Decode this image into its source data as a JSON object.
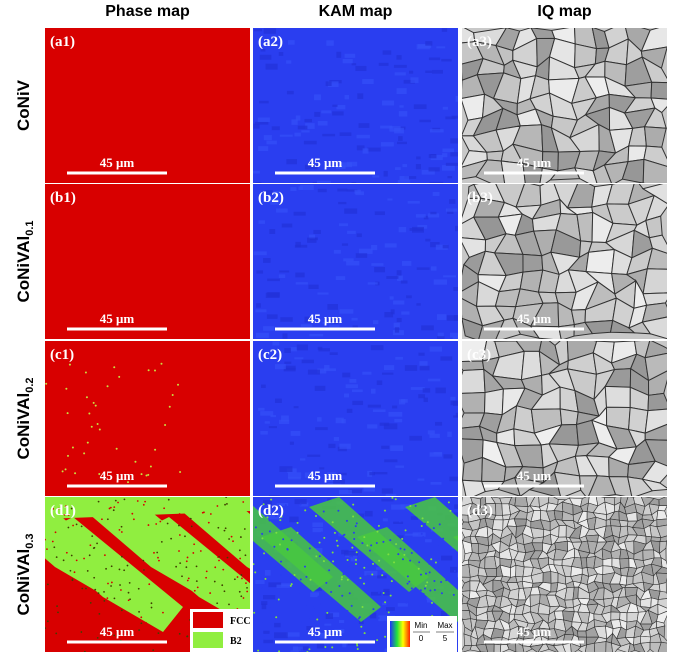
{
  "columns": [
    "Phase map",
    "KAM map",
    "IQ map"
  ],
  "rows": [
    {
      "label": "CoNiV",
      "panels": [
        "(a1)",
        "(a2)",
        "(a3)"
      ]
    },
    {
      "label": "CoNiVAl",
      "subscript": "0.1",
      "panels": [
        "(b1)",
        "(b2)",
        "(b3)"
      ]
    },
    {
      "label": "CoNiVAl",
      "subscript": "0.2",
      "panels": [
        "(c1)",
        "(c2)",
        "(c3)"
      ]
    },
    {
      "label": "CoNiVAl",
      "subscript": "0.3",
      "panels": [
        "(d1)",
        "(d2)",
        "(d3)"
      ]
    }
  ],
  "scale_bar": "45 μm",
  "phase_legend": [
    "FCC",
    "B2"
  ],
  "kam_colorbar": {
    "min_label": "Min",
    "min_value": 0,
    "max_label": "Max",
    "max_value": 5
  }
}
